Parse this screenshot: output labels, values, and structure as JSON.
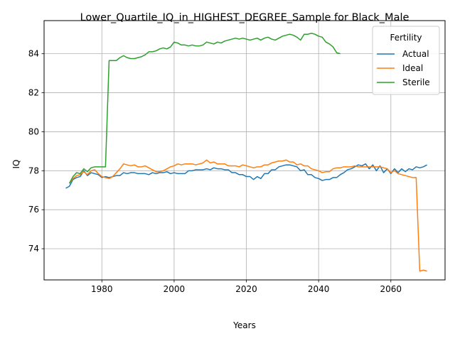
{
  "chart_data": {
    "type": "line",
    "title": "Lower_Quartile_IQ_in_HIGHEST_DEGREE_Sample for Black_Male",
    "xlabel": "Years",
    "ylabel": "IQ",
    "xlim": [
      1964,
      2075
    ],
    "ylim": [
      72.4,
      85.7
    ],
    "xticks": [
      1980,
      2000,
      2020,
      2040,
      2060
    ],
    "yticks": [
      74,
      76,
      78,
      80,
      82,
      84
    ],
    "grid": true,
    "legend": {
      "title": "Fertility",
      "placement": "top-right"
    },
    "series": [
      {
        "name": "Actual",
        "color": "#1f77b4",
        "x": [
          1970,
          1971,
          1972,
          1973,
          1974,
          1975,
          1976,
          1977,
          1978,
          1979,
          1980,
          1981,
          1982,
          1983,
          1984,
          1985,
          1986,
          1987,
          1988,
          1989,
          1990,
          1991,
          1992,
          1993,
          1994,
          1995,
          1996,
          1997,
          1998,
          1999,
          2000,
          2001,
          2002,
          2003,
          2004,
          2005,
          2006,
          2007,
          2008,
          2009,
          2010,
          2011,
          2012,
          2013,
          2014,
          2015,
          2016,
          2017,
          2018,
          2019,
          2020,
          2021,
          2022,
          2023,
          2024,
          2025,
          2026,
          2027,
          2028,
          2029,
          2030,
          2031,
          2032,
          2033,
          2034,
          2035,
          2036,
          2037,
          2038,
          2039,
          2040,
          2041,
          2042,
          2043,
          2044,
          2045,
          2046,
          2047,
          2048,
          2049,
          2050,
          2051,
          2052,
          2053,
          2054,
          2055,
          2056,
          2057,
          2058,
          2059,
          2060,
          2061,
          2062,
          2063,
          2064,
          2065,
          2066,
          2067,
          2068,
          2069,
          2070
        ],
        "values": [
          77.1,
          77.2,
          77.55,
          77.65,
          77.7,
          78.0,
          77.75,
          77.9,
          77.85,
          77.8,
          77.65,
          77.7,
          77.65,
          77.7,
          77.75,
          77.75,
          77.9,
          77.85,
          77.9,
          77.9,
          77.85,
          77.85,
          77.85,
          77.8,
          77.9,
          77.85,
          77.9,
          77.9,
          77.95,
          77.85,
          77.9,
          77.85,
          77.85,
          77.85,
          78.0,
          78.0,
          78.05,
          78.05,
          78.05,
          78.1,
          78.05,
          78.15,
          78.1,
          78.1,
          78.05,
          78.05,
          77.9,
          77.9,
          77.8,
          77.8,
          77.7,
          77.7,
          77.55,
          77.7,
          77.6,
          77.85,
          77.85,
          78.05,
          78.05,
          78.2,
          78.25,
          78.3,
          78.3,
          78.25,
          78.2,
          78.0,
          78.05,
          77.8,
          77.8,
          77.65,
          77.6,
          77.5,
          77.55,
          77.55,
          77.65,
          77.65,
          77.8,
          77.9,
          78.05,
          78.1,
          78.2,
          78.3,
          78.25,
          78.35,
          78.1,
          78.3,
          78.0,
          78.25,
          77.9,
          78.1,
          77.85,
          78.1,
          77.9,
          78.1,
          77.95,
          78.1,
          78.05,
          78.2,
          78.15,
          78.2,
          78.3
        ]
      },
      {
        "name": "Ideal",
        "color": "#ff7f0e",
        "x": [
          1971,
          1972,
          1973,
          1974,
          1975,
          1976,
          1977,
          1978,
          1979,
          1980,
          1981,
          1982,
          1983,
          1984,
          1985,
          1986,
          1987,
          1988,
          1989,
          1990,
          1991,
          1992,
          1993,
          1994,
          1995,
          1996,
          1997,
          1998,
          1999,
          2000,
          2001,
          2002,
          2003,
          2004,
          2005,
          2006,
          2007,
          2008,
          2009,
          2010,
          2011,
          2012,
          2013,
          2014,
          2015,
          2016,
          2017,
          2018,
          2019,
          2020,
          2021,
          2022,
          2023,
          2024,
          2025,
          2026,
          2027,
          2028,
          2029,
          2030,
          2031,
          2032,
          2033,
          2034,
          2035,
          2036,
          2037,
          2038,
          2039,
          2040,
          2041,
          2042,
          2043,
          2044,
          2045,
          2046,
          2047,
          2048,
          2049,
          2050,
          2051,
          2052,
          2053,
          2054,
          2055,
          2056,
          2057,
          2058,
          2059,
          2060,
          2061,
          2062,
          2063,
          2064,
          2065,
          2066,
          2067,
          2068,
          2069,
          2070
        ],
        "values": [
          77.35,
          77.6,
          77.75,
          77.8,
          77.95,
          77.8,
          78.0,
          78.05,
          77.85,
          77.7,
          77.65,
          77.6,
          77.7,
          77.9,
          78.1,
          78.35,
          78.3,
          78.25,
          78.3,
          78.2,
          78.2,
          78.25,
          78.15,
          78.05,
          77.95,
          77.95,
          78.0,
          78.1,
          78.2,
          78.25,
          78.35,
          78.3,
          78.35,
          78.35,
          78.35,
          78.3,
          78.35,
          78.4,
          78.55,
          78.4,
          78.45,
          78.35,
          78.35,
          78.35,
          78.25,
          78.25,
          78.25,
          78.2,
          78.3,
          78.25,
          78.2,
          78.15,
          78.2,
          78.2,
          78.3,
          78.3,
          78.4,
          78.45,
          78.5,
          78.5,
          78.55,
          78.45,
          78.45,
          78.3,
          78.35,
          78.25,
          78.25,
          78.1,
          78.05,
          78.0,
          77.9,
          77.95,
          77.95,
          78.1,
          78.15,
          78.15,
          78.2,
          78.2,
          78.2,
          78.25,
          78.2,
          78.2,
          78.2,
          78.2,
          78.2,
          78.2,
          78.2,
          78.15,
          78.1,
          77.9,
          78.0,
          77.85,
          77.8,
          77.75,
          77.7,
          77.65,
          77.65,
          72.85,
          72.9,
          72.85
        ]
      },
      {
        "name": "Sterile",
        "color": "#2ca02c",
        "x": [
          1971,
          1972,
          1973,
          1974,
          1975,
          1976,
          1977,
          1978,
          1979,
          1980,
          1981,
          1982,
          1983,
          1984,
          1985,
          1986,
          1987,
          1988,
          1989,
          1990,
          1991,
          1992,
          1993,
          1994,
          1995,
          1996,
          1997,
          1998,
          1999,
          2000,
          2001,
          2002,
          2003,
          2004,
          2005,
          2006,
          2007,
          2008,
          2009,
          2010,
          2011,
          2012,
          2013,
          2014,
          2015,
          2016,
          2017,
          2018,
          2019,
          2020,
          2021,
          2022,
          2023,
          2024,
          2025,
          2026,
          2027,
          2028,
          2029,
          2030,
          2031,
          2032,
          2033,
          2034,
          2035,
          2036,
          2037,
          2038,
          2039,
          2040,
          2041,
          2042,
          2043,
          2044,
          2045,
          2046
        ],
        "values": [
          77.35,
          77.7,
          77.9,
          77.85,
          78.1,
          77.95,
          78.15,
          78.2,
          78.2,
          78.2,
          78.2,
          83.65,
          83.65,
          83.65,
          83.8,
          83.9,
          83.8,
          83.75,
          83.75,
          83.8,
          83.85,
          83.95,
          84.1,
          84.1,
          84.15,
          84.25,
          84.3,
          84.25,
          84.35,
          84.6,
          84.55,
          84.45,
          84.45,
          84.4,
          84.45,
          84.4,
          84.4,
          84.45,
          84.6,
          84.55,
          84.5,
          84.6,
          84.55,
          84.65,
          84.7,
          84.75,
          84.8,
          84.75,
          84.8,
          84.75,
          84.7,
          84.75,
          84.8,
          84.7,
          84.8,
          84.85,
          84.75,
          84.7,
          84.8,
          84.9,
          84.95,
          85.0,
          84.95,
          84.85,
          84.7,
          85.0,
          85.0,
          85.05,
          85.0,
          84.9,
          84.85,
          84.6,
          84.5,
          84.35,
          84.05,
          84.0
        ]
      }
    ]
  }
}
